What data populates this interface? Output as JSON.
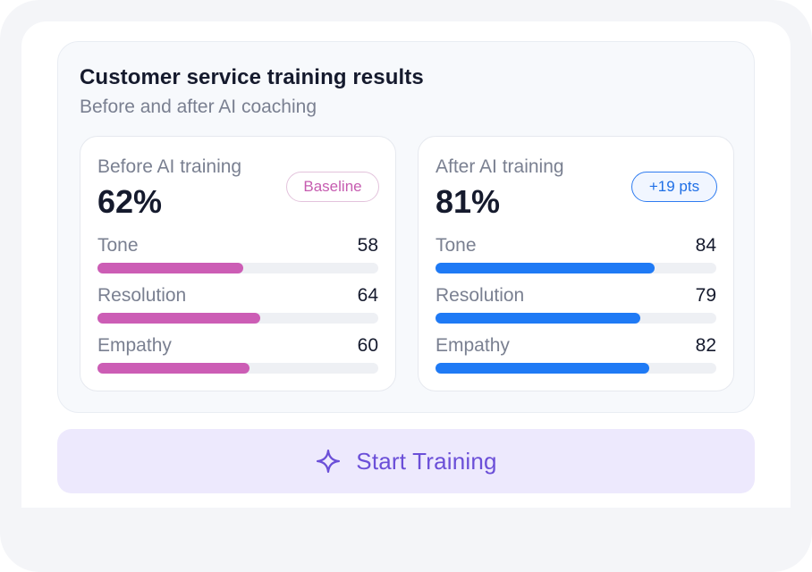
{
  "card": {
    "title": "Customer service training results",
    "subtitle": "Before and after AI coaching"
  },
  "before": {
    "label": "Before AI training",
    "score": "62%",
    "badge": "Baseline",
    "metrics": [
      {
        "label": "Tone",
        "value": "58",
        "fraction": 0.58
      },
      {
        "label": "Resolution",
        "value": "64",
        "fraction": 0.64
      },
      {
        "label": "Empathy",
        "value": "60",
        "fraction": 0.6
      }
    ]
  },
  "after": {
    "label": "After AI training",
    "score": "81%",
    "badge": "+19 pts",
    "metrics": [
      {
        "label": "Tone",
        "value": "84",
        "fraction": 0.84
      },
      {
        "label": "Resolution",
        "value": "79",
        "fraction": 0.79
      },
      {
        "label": "Empathy",
        "value": "82",
        "fraction": 0.82
      }
    ]
  },
  "cta": {
    "label": "Start Training",
    "icon": "sparkle-icon"
  },
  "colors": {
    "before_bar": "#cc5db5",
    "after_bar": "#1f7af5",
    "cta_text": "#6b4fd8",
    "cta_background": "#ede9fd"
  }
}
